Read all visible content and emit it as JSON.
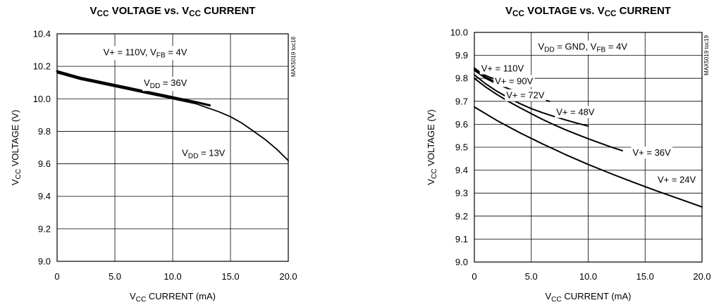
{
  "chart_data": [
    {
      "type": "line",
      "title": "VCC VOLTAGE vs. VCC CURRENT",
      "title_parts": [
        [
          "V",
          ""
        ],
        [
          "CC",
          "sub"
        ],
        [
          " VOLTAGE vs. V",
          ""
        ],
        [
          "CC",
          "sub"
        ],
        [
          " CURRENT",
          ""
        ]
      ],
      "xlabel_parts": [
        [
          "V",
          ""
        ],
        [
          "CC",
          "sub"
        ],
        [
          " CURRENT (mA)",
          ""
        ]
      ],
      "ylabel_parts": [
        [
          "V",
          ""
        ],
        [
          "CC",
          "sub"
        ],
        [
          " VOLTAGE (V)",
          ""
        ]
      ],
      "side_label": "MAX5019 toc18",
      "xlim": [
        0,
        20
      ],
      "ylim": [
        9.0,
        10.4
      ],
      "xticks": [
        0,
        5,
        10,
        15,
        20
      ],
      "xtick_labels": [
        "0",
        "5.0",
        "10.0",
        "15.0",
        "20.0"
      ],
      "yticks": [
        9.0,
        9.2,
        9.4,
        9.6,
        9.8,
        10.0,
        10.2,
        10.4
      ],
      "ytick_labels": [
        "9.0",
        "9.2",
        "9.4",
        "9.6",
        "9.8",
        "10.0",
        "10.2",
        "10.4"
      ],
      "grid": true,
      "annotations": [
        {
          "parts": [
            [
              "V+ = 110V, V",
              ""
            ],
            [
              "FB",
              "sub"
            ],
            [
              " = 4V",
              ""
            ]
          ],
          "x": 4.0,
          "y": 10.29
        },
        {
          "parts": [
            [
              "V",
              ""
            ],
            [
              "DD",
              "sub"
            ],
            [
              " = 36V",
              ""
            ]
          ],
          "x": 7.5,
          "y": 10.1
        },
        {
          "parts": [
            [
              "V",
              ""
            ],
            [
              "DD",
              "sub"
            ],
            [
              " = 13V",
              ""
            ]
          ],
          "x": 10.8,
          "y": 9.67
        }
      ],
      "series": [
        {
          "name": "VDD = 36V",
          "width": 3.0,
          "x": [
            0,
            2,
            4,
            6,
            8,
            10,
            12,
            13.2
          ],
          "y": [
            10.17,
            10.13,
            10.1,
            10.07,
            10.04,
            10.01,
            9.98,
            9.96
          ]
        },
        {
          "name": "VDD = 13V",
          "width": 1.8,
          "x": [
            0,
            2,
            4,
            6,
            8,
            10,
            12,
            14,
            15,
            16,
            17,
            18,
            19,
            20
          ],
          "y": [
            10.16,
            10.12,
            10.09,
            10.06,
            10.03,
            10.0,
            9.97,
            9.92,
            9.89,
            9.85,
            9.8,
            9.75,
            9.69,
            9.62
          ]
        }
      ]
    },
    {
      "type": "line",
      "title": "VCC VOLTAGE vs. VCC CURRENT",
      "title_parts": [
        [
          "V",
          ""
        ],
        [
          "CC",
          "sub"
        ],
        [
          " VOLTAGE vs. V",
          ""
        ],
        [
          "CC",
          "sub"
        ],
        [
          " CURRENT",
          ""
        ]
      ],
      "xlabel_parts": [
        [
          "V",
          ""
        ],
        [
          "CC",
          "sub"
        ],
        [
          " CURRENT (mA)",
          ""
        ]
      ],
      "ylabel_parts": [
        [
          "V",
          ""
        ],
        [
          "CC",
          "sub"
        ],
        [
          " VOLTAGE (V)",
          ""
        ]
      ],
      "side_label": "MAX5019 toc19",
      "xlim": [
        0,
        20
      ],
      "ylim": [
        9.0,
        10.0
      ],
      "xticks": [
        0,
        5,
        10,
        15,
        20
      ],
      "xtick_labels": [
        "0",
        "5.0",
        "10.0",
        "15.0",
        "20.0"
      ],
      "yticks": [
        9.0,
        9.1,
        9.2,
        9.3,
        9.4,
        9.5,
        9.6,
        9.7,
        9.8,
        9.9,
        10.0
      ],
      "ytick_labels": [
        "9.0",
        "9.1",
        "9.2",
        "9.3",
        "9.4",
        "9.5",
        "9.6",
        "9.7",
        "9.8",
        "9.9",
        "10.0"
      ],
      "grid": true,
      "annotations": [
        {
          "parts": [
            [
              "V",
              ""
            ],
            [
              "DD",
              "sub"
            ],
            [
              " = GND, V",
              ""
            ],
            [
              "FB",
              "sub"
            ],
            [
              " = 4V",
              ""
            ]
          ],
          "x": 5.6,
          "y": 9.94
        },
        {
          "parts": [
            [
              "V+ = 110V",
              ""
            ]
          ],
          "x": 0.6,
          "y": 9.845
        },
        {
          "parts": [
            [
              "V+ = 90V",
              ""
            ]
          ],
          "x": 1.8,
          "y": 9.79
        },
        {
          "parts": [
            [
              "V+ = 72V",
              ""
            ]
          ],
          "x": 2.8,
          "y": 9.728
        },
        {
          "parts": [
            [
              "V+ = 48V",
              ""
            ]
          ],
          "x": 7.2,
          "y": 9.655
        },
        {
          "parts": [
            [
              "V+ = 36V",
              ""
            ]
          ],
          "x": 13.9,
          "y": 9.478
        },
        {
          "parts": [
            [
              "V+ = 24V",
              ""
            ]
          ],
          "x": 16.1,
          "y": 9.36
        }
      ],
      "series": [
        {
          "name": "V+ = 110V",
          "width": 2.0,
          "x": [
            0,
            0.5,
            1,
            1.5,
            2,
            2.5,
            3
          ],
          "y": [
            9.845,
            9.826,
            9.812,
            9.802,
            9.794,
            9.789,
            9.786
          ]
        },
        {
          "name": "V+ = 90V",
          "width": 2.0,
          "x": [
            0,
            0.5,
            1,
            1.5,
            2,
            2.5,
            3,
            3.5,
            4,
            4.4
          ],
          "y": [
            9.84,
            9.82,
            9.805,
            9.793,
            9.784,
            9.777,
            9.772,
            9.769,
            9.768,
            9.768
          ]
        },
        {
          "name": "V+ = 72V",
          "width": 2.0,
          "x": [
            0,
            1,
            2,
            3,
            4,
            5,
            6,
            6.6
          ],
          "y": [
            9.835,
            9.8,
            9.775,
            9.755,
            9.738,
            9.722,
            9.708,
            9.7
          ]
        },
        {
          "name": "V+ = 48V",
          "width": 2.0,
          "x": [
            0,
            1,
            2,
            3,
            4,
            5,
            6,
            7,
            8,
            9,
            10
          ],
          "y": [
            9.815,
            9.776,
            9.743,
            9.715,
            9.69,
            9.668,
            9.65,
            9.634,
            9.619,
            9.605,
            9.592
          ]
        },
        {
          "name": "V+ = 36V",
          "width": 2.0,
          "x": [
            0,
            1,
            2,
            3,
            4,
            5,
            6,
            7,
            8,
            9,
            10,
            11,
            12,
            13
          ],
          "y": [
            9.8,
            9.762,
            9.729,
            9.699,
            9.672,
            9.646,
            9.621,
            9.598,
            9.576,
            9.556,
            9.537,
            9.519,
            9.501,
            9.485
          ]
        },
        {
          "name": "V+ = 24V",
          "width": 2.0,
          "x": [
            0,
            2,
            4,
            6,
            8,
            10,
            12,
            14,
            16,
            18,
            20
          ],
          "y": [
            9.675,
            9.616,
            9.563,
            9.514,
            9.468,
            9.425,
            9.385,
            9.347,
            9.31,
            9.275,
            9.24
          ]
        }
      ]
    }
  ]
}
